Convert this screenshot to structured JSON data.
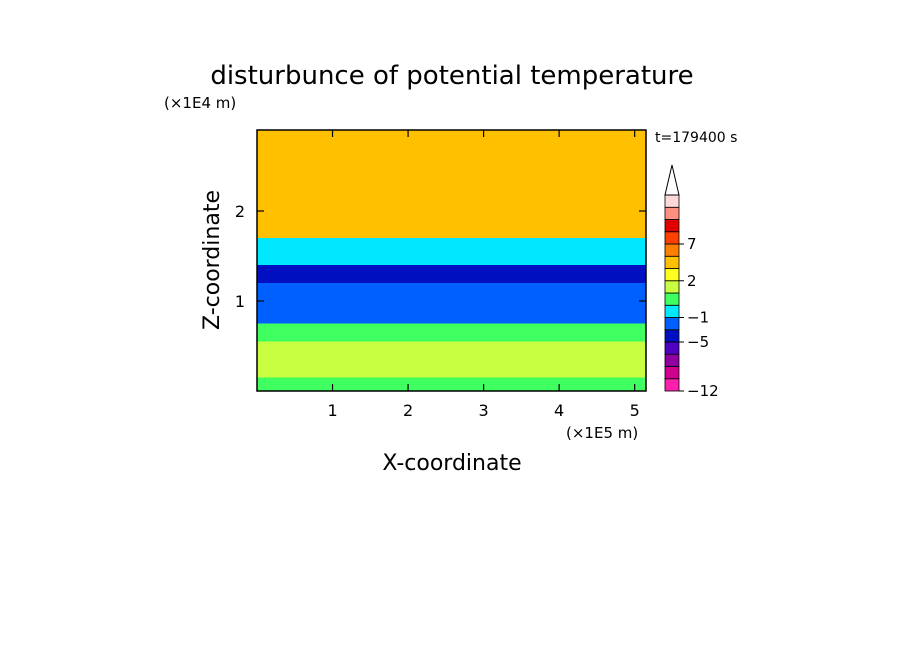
{
  "chart_data": {
    "type": "heatmap",
    "title": "disturbunce of potential temperature",
    "xlabel": "X-coordinate",
    "ylabel": "Z-coordinate",
    "x_unit": "(×1E5 m)",
    "y_unit": "(×1E4 m)",
    "time_label": "t=179400 s",
    "xlim": [
      0,
      5.15
    ],
    "ylim": [
      0,
      2.9
    ],
    "x_ticks": [
      1,
      2,
      3,
      4,
      5
    ],
    "y_ticks": [
      1,
      2
    ],
    "colorbar": {
      "levels": [
        -12,
        -10,
        -8,
        -6,
        -5,
        -3,
        -1,
        0,
        1,
        2,
        3,
        5,
        7,
        8,
        9,
        10
      ],
      "tick_labels": [
        "−12",
        "−5",
        "−1",
        "2",
        "7"
      ],
      "tick_values": [
        -12,
        -5,
        -1,
        2,
        7
      ],
      "colors": [
        "#ff20b0",
        "#d00090",
        "#9000a0",
        "#5000c0",
        "#0010c0",
        "#0060ff",
        "#00e8ff",
        "#40ff60",
        "#c8ff40",
        "#ffff20",
        "#ffc000",
        "#ff8000",
        "#ff4000",
        "#e00000",
        "#ff9080",
        "#ffd8d8"
      ],
      "extend": "max"
    },
    "field_description": "bands",
    "bands": [
      {
        "z": [
          0.0,
          0.15
        ],
        "value": 0.5
      },
      {
        "z": [
          0.15,
          0.55
        ],
        "value": 1.5
      },
      {
        "z": [
          0.55,
          0.75
        ],
        "value": 0.5
      },
      {
        "z": [
          0.75,
          1.2
        ],
        "value": -1.5
      },
      {
        "z": [
          1.2,
          1.4
        ],
        "value": -4
      },
      {
        "z": [
          1.4,
          1.7
        ],
        "value": -1
      },
      {
        "z": [
          1.7,
          2.3
        ],
        "value": 3
      },
      {
        "z": [
          2.3,
          2.9
        ],
        "value": 4
      }
    ]
  }
}
